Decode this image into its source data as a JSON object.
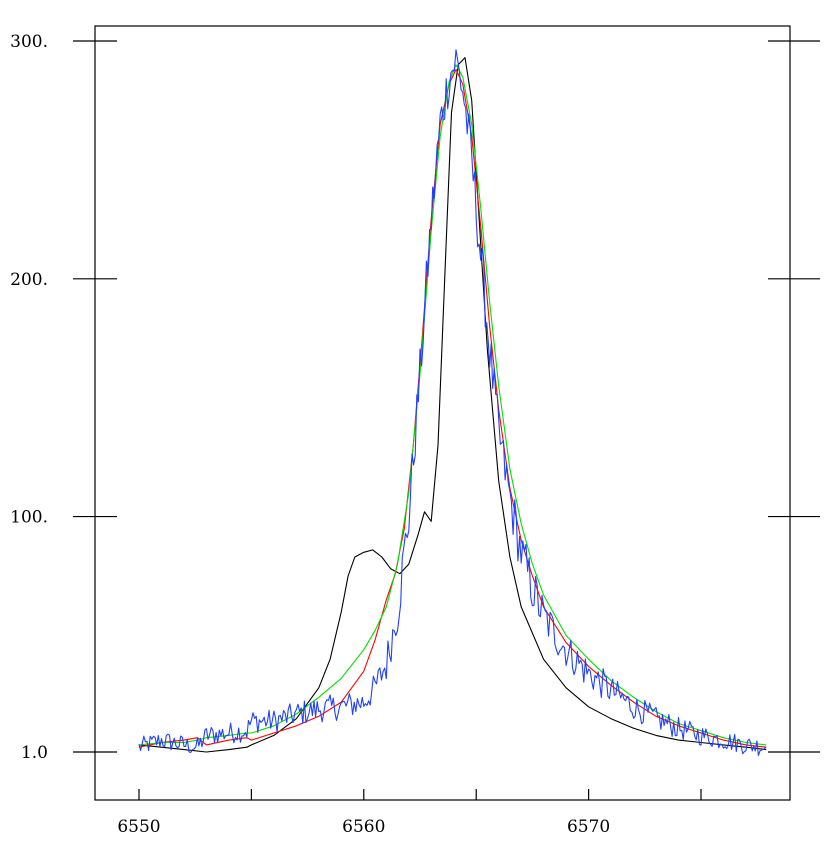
{
  "chart_data": {
    "type": "line",
    "title": "",
    "xlabel": "",
    "ylabel": "",
    "xlim": [
      6548,
      6578
    ],
    "ylim": [
      -20,
      315
    ],
    "x_ticks": [
      6550,
      6555,
      6560,
      6565,
      6570,
      6575
    ],
    "x_tick_labels": [
      {
        "value": 6550,
        "label": "6550"
      },
      {
        "value": 6560,
        "label": "6560"
      },
      {
        "value": 6570,
        "label": "6570"
      }
    ],
    "y_ticks": [
      {
        "value": 1,
        "label": "1.0"
      },
      {
        "value": 100,
        "label": "100."
      },
      {
        "value": 200,
        "label": "200."
      },
      {
        "value": 300,
        "label": "300."
      }
    ],
    "grid": false,
    "legend": "none",
    "series": [
      {
        "color": "#000000",
        "points": [
          [
            6550,
            4
          ],
          [
            6551,
            3
          ],
          [
            6552,
            2
          ],
          [
            6553,
            1
          ],
          [
            6554,
            2
          ],
          [
            6554.8,
            3
          ],
          [
            6555,
            4
          ],
          [
            6556,
            8
          ],
          [
            6557,
            15
          ],
          [
            6558,
            28
          ],
          [
            6558.5,
            40
          ],
          [
            6559,
            60
          ],
          [
            6559.3,
            75
          ],
          [
            6559.6,
            83
          ],
          [
            6560,
            85
          ],
          [
            6560.4,
            86
          ],
          [
            6560.8,
            83
          ],
          [
            6561.2,
            78
          ],
          [
            6561.6,
            76
          ],
          [
            6562,
            80
          ],
          [
            6562.4,
            92
          ],
          [
            6562.7,
            102
          ],
          [
            6563,
            98
          ],
          [
            6563.3,
            130
          ],
          [
            6563.6,
            200
          ],
          [
            6563.9,
            270
          ],
          [
            6564.2,
            290
          ],
          [
            6564.5,
            293
          ],
          [
            6564.8,
            275
          ],
          [
            6565.1,
            230
          ],
          [
            6565.5,
            170
          ],
          [
            6566,
            115
          ],
          [
            6566.5,
            83
          ],
          [
            6567,
            62
          ],
          [
            6568,
            40
          ],
          [
            6569,
            28
          ],
          [
            6570,
            20
          ],
          [
            6571,
            15
          ],
          [
            6572,
            11
          ],
          [
            6573,
            8
          ],
          [
            6574,
            6
          ],
          [
            6575,
            5
          ],
          [
            6576,
            4
          ],
          [
            6577,
            3
          ],
          [
            6577.9,
            2
          ]
        ]
      },
      {
        "color": "#ff0000",
        "points": [
          [
            6550,
            3
          ],
          [
            6551,
            5
          ],
          [
            6552,
            6
          ],
          [
            6552.6,
            7
          ],
          [
            6553,
            4
          ],
          [
            6554,
            6
          ],
          [
            6554.8,
            7
          ],
          [
            6555,
            6
          ],
          [
            6556,
            9
          ],
          [
            6557,
            12
          ],
          [
            6558,
            16
          ],
          [
            6559,
            22
          ],
          [
            6560,
            35
          ],
          [
            6560.5,
            48
          ],
          [
            6561,
            65
          ],
          [
            6561.4,
            76
          ],
          [
            6561.8,
            95
          ],
          [
            6562.2,
            130
          ],
          [
            6562.6,
            175
          ],
          [
            6563,
            225
          ],
          [
            6563.4,
            265
          ],
          [
            6563.8,
            282
          ],
          [
            6564.1,
            288
          ],
          [
            6564.4,
            282
          ],
          [
            6564.8,
            260
          ],
          [
            6565.2,
            222
          ],
          [
            6565.6,
            180
          ],
          [
            6566,
            145
          ],
          [
            6566.5,
            112
          ],
          [
            6567,
            90
          ],
          [
            6567.5,
            75
          ],
          [
            6568,
            62
          ],
          [
            6569,
            47
          ],
          [
            6570,
            37
          ],
          [
            6571,
            29
          ],
          [
            6572,
            22
          ],
          [
            6573,
            16
          ],
          [
            6574,
            12
          ],
          [
            6575,
            9
          ],
          [
            6576,
            6
          ],
          [
            6577,
            4
          ],
          [
            6577.9,
            3
          ]
        ]
      },
      {
        "color": "#00e000",
        "points": [
          [
            6550,
            4
          ],
          [
            6551,
            5
          ],
          [
            6552,
            5
          ],
          [
            6552.6,
            6
          ],
          [
            6553,
            7
          ],
          [
            6554,
            8
          ],
          [
            6554.8,
            9
          ],
          [
            6555,
            9
          ],
          [
            6556,
            12
          ],
          [
            6557,
            17
          ],
          [
            6558,
            24
          ],
          [
            6559,
            32
          ],
          [
            6560,
            44
          ],
          [
            6560.5,
            52
          ],
          [
            6561,
            62
          ],
          [
            6561.5,
            80
          ],
          [
            6562,
            110
          ],
          [
            6562.5,
            160
          ],
          [
            6563,
            220
          ],
          [
            6563.4,
            260
          ],
          [
            6563.8,
            283
          ],
          [
            6564.1,
            290
          ],
          [
            6564.4,
            285
          ],
          [
            6564.8,
            265
          ],
          [
            6565.2,
            230
          ],
          [
            6565.6,
            190
          ],
          [
            6566,
            155
          ],
          [
            6566.5,
            120
          ],
          [
            6567,
            97
          ],
          [
            6567.5,
            80
          ],
          [
            6568,
            67
          ],
          [
            6569,
            50
          ],
          [
            6570,
            40
          ],
          [
            6571,
            31
          ],
          [
            6572,
            24
          ],
          [
            6573,
            18
          ],
          [
            6574,
            13
          ],
          [
            6575,
            10
          ],
          [
            6576,
            7
          ],
          [
            6577,
            5
          ],
          [
            6577.9,
            4
          ]
        ]
      },
      {
        "color": "#2040ff",
        "noise": 6,
        "points": [
          [
            6550,
            3
          ],
          [
            6551,
            6
          ],
          [
            6552,
            4
          ],
          [
            6552.6,
            3
          ],
          [
            6553,
            8
          ],
          [
            6554,
            9
          ],
          [
            6554.8,
            10
          ],
          [
            6555,
            14
          ],
          [
            6556,
            14
          ],
          [
            6557,
            17
          ],
          [
            6558,
            19
          ],
          [
            6559,
            20
          ],
          [
            6560,
            22
          ],
          [
            6560.5,
            28
          ],
          [
            6561,
            38
          ],
          [
            6561.5,
            60
          ],
          [
            6562,
            100
          ],
          [
            6562.5,
            160
          ],
          [
            6563,
            225
          ],
          [
            6563.4,
            265
          ],
          [
            6563.8,
            285
          ],
          [
            6564.1,
            292
          ],
          [
            6564.4,
            280
          ],
          [
            6564.8,
            250
          ],
          [
            6565.2,
            210
          ],
          [
            6565.6,
            170
          ],
          [
            6566,
            135
          ],
          [
            6566.5,
            108
          ],
          [
            6567,
            85
          ],
          [
            6567.5,
            70
          ],
          [
            6568,
            58
          ],
          [
            6569,
            44
          ],
          [
            6570,
            34
          ],
          [
            6571,
            27
          ],
          [
            6572,
            20
          ],
          [
            6573,
            15
          ],
          [
            6574,
            11
          ],
          [
            6575,
            8
          ],
          [
            6576,
            6
          ],
          [
            6577,
            4
          ],
          [
            6577.9,
            3
          ]
        ]
      }
    ]
  }
}
